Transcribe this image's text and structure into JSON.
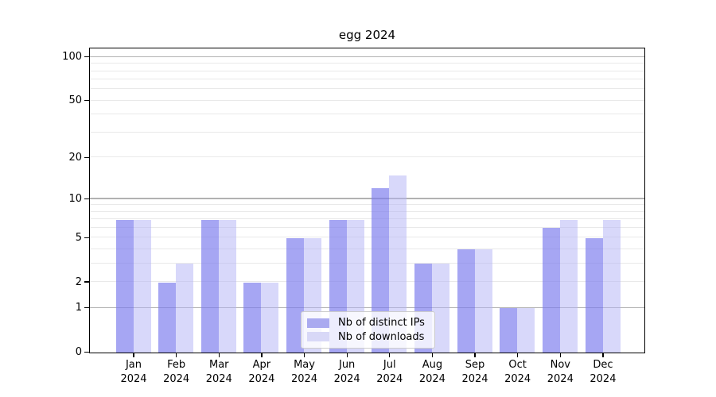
{
  "chart_data": {
    "type": "bar",
    "title": "egg 2024",
    "x_categories": [
      "Jan",
      "Feb",
      "Mar",
      "Apr",
      "May",
      "Jun",
      "Jul",
      "Aug",
      "Sep",
      "Oct",
      "Nov",
      "Dec"
    ],
    "x_year_label": "2024",
    "series": [
      {
        "name": "Nb of distinct IPs",
        "swatch_color": "#aaaaf0",
        "fill_color": "rgba(124,124,238,0.68)",
        "values": [
          7,
          2,
          7,
          2,
          5,
          7,
          12,
          3,
          4,
          1,
          6,
          5
        ]
      },
      {
        "name": "Nb of downloads",
        "swatch_color": "#d8d8f7",
        "fill_color": "rgba(178,178,246,0.5)",
        "values": [
          7,
          3,
          7,
          2,
          5,
          7,
          15,
          3,
          4,
          1,
          7,
          7
        ]
      }
    ],
    "yscale": "log1p",
    "ylim": [
      0,
      114
    ],
    "y_ticks": [
      {
        "v": 0,
        "label": "0"
      },
      {
        "v": 1,
        "label": "1"
      },
      {
        "v": 2,
        "label": "2"
      },
      {
        "v": 5,
        "label": "5"
      },
      {
        "v": 10,
        "label": "10"
      },
      {
        "v": 20,
        "label": "20"
      },
      {
        "v": 50,
        "label": "50"
      },
      {
        "v": 100,
        "label": "100"
      }
    ],
    "y_grid_major": [
      1,
      10,
      100
    ],
    "y_grid_light": [
      2,
      3,
      4,
      5,
      6,
      7,
      8,
      9,
      20,
      30,
      40,
      50,
      60,
      70,
      80,
      90
    ],
    "legend_position": "lower center",
    "grid": true,
    "colors": {
      "grid_major": "#b2b2b2",
      "grid_light": "#e9e9e9",
      "spine": "#000000"
    }
  }
}
